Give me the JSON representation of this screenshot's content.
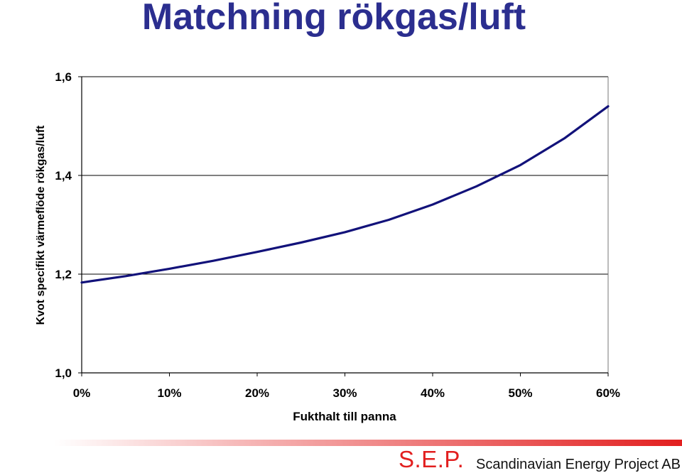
{
  "slide": {
    "title": "Matchning rökgas/luft"
  },
  "footer": {
    "logo": "S.E.P.",
    "company": "Scandinavian Energy Project AB"
  },
  "colors": {
    "title": "#2b2e8f",
    "line": "#12127a",
    "gridline": "#000000",
    "footer_accent": "#e21f1f"
  },
  "chart_data": {
    "type": "line",
    "title": "",
    "xlabel": "Fukthalt till panna",
    "ylabel": "Kvot specifikt värmeflöde rökgas/luft",
    "xlim": [
      0,
      60
    ],
    "ylim": [
      1.0,
      1.6
    ],
    "xticks": [
      0,
      10,
      20,
      30,
      40,
      50,
      60
    ],
    "xtick_labels": [
      "0%",
      "10%",
      "20%",
      "30%",
      "40%",
      "50%",
      "60%"
    ],
    "yticks": [
      1.0,
      1.2,
      1.4,
      1.6
    ],
    "ytick_labels": [
      "1,0",
      "1,2",
      "1,4",
      "1,6"
    ],
    "grid": "horizontal",
    "legend": "none",
    "series": [
      {
        "x": [
          0,
          5,
          10,
          15,
          20,
          25,
          30,
          35,
          40,
          45,
          50,
          55,
          60
        ],
        "y": [
          1.183,
          1.196,
          1.211,
          1.227,
          1.245,
          1.264,
          1.285,
          1.31,
          1.341,
          1.378,
          1.421,
          1.475,
          1.54
        ]
      }
    ]
  }
}
